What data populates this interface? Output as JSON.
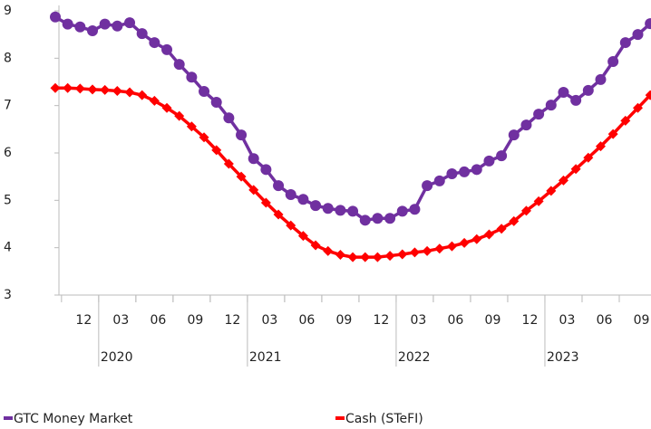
{
  "chart_data": {
    "type": "line",
    "categories": [
      null,
      null,
      "12",
      null,
      null,
      "03",
      null,
      null,
      "06",
      null,
      null,
      "09",
      null,
      null,
      "12",
      null,
      null,
      "03",
      null,
      null,
      "06",
      null,
      null,
      "09",
      null,
      null,
      "12",
      null,
      null,
      "03",
      null,
      null,
      "06",
      null,
      null,
      "09",
      null,
      null,
      "12",
      null,
      null,
      "03",
      null,
      null,
      "06",
      null,
      null,
      "09",
      null
    ],
    "category_groups": [
      "2020",
      "2021",
      "2022",
      "2023"
    ],
    "series": [
      {
        "name": "GTC Money Market",
        "color": "#7030a0",
        "marker": "circle",
        "values": [
          8.87,
          8.72,
          8.66,
          8.58,
          8.72,
          8.68,
          8.75,
          8.52,
          8.33,
          8.18,
          7.87,
          7.6,
          7.3,
          7.07,
          6.74,
          6.38,
          5.88,
          5.65,
          5.31,
          5.12,
          5.02,
          4.89,
          4.83,
          4.79,
          4.77,
          4.58,
          4.62,
          4.62,
          4.77,
          4.81,
          5.31,
          5.41,
          5.56,
          5.6,
          5.65,
          5.83,
          5.94,
          6.38,
          6.59,
          6.82,
          7.01,
          7.28,
          7.11,
          7.32,
          7.55,
          7.93,
          8.33,
          8.5,
          8.73
        ]
      },
      {
        "name": "Cash (STeFI)",
        "color": "#ff0000",
        "marker": "diamond",
        "values": [
          7.37,
          7.37,
          7.36,
          7.34,
          7.33,
          7.31,
          7.28,
          7.22,
          7.1,
          6.95,
          6.78,
          6.56,
          6.33,
          6.06,
          5.77,
          5.5,
          5.22,
          4.95,
          4.7,
          4.47,
          4.25,
          4.05,
          3.93,
          3.85,
          3.8,
          3.8,
          3.8,
          3.83,
          3.86,
          3.9,
          3.93,
          3.98,
          4.03,
          4.1,
          4.18,
          4.28,
          4.4,
          4.56,
          4.78,
          4.98,
          5.2,
          5.42,
          5.66,
          5.9,
          6.14,
          6.4,
          6.68,
          6.95,
          7.22
        ]
      }
    ],
    "ylim": [
      3,
      9
    ],
    "yticks": [
      3,
      4,
      5,
      6,
      7,
      8,
      9
    ],
    "grid": false,
    "legend": "bottom"
  }
}
